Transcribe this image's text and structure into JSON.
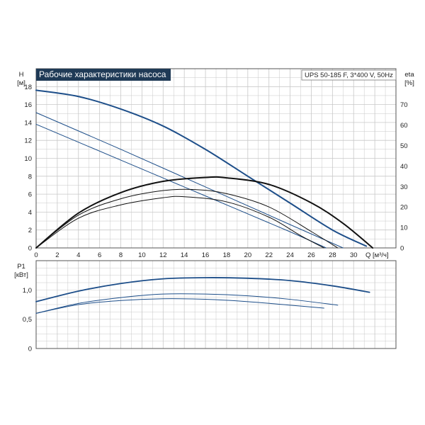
{
  "chart_data": [
    {
      "type": "line",
      "title": "Рабочие характеристики насоса",
      "model_label": "UPS 50-185 F, 3*400 V, 50Hz",
      "xlabel": "Q [м³/ч]",
      "ylabel_name": "H",
      "ylabel_unit": "[м]",
      "y2label_name": "eta",
      "y2label_unit": "[%]",
      "xlim": [
        0,
        34
      ],
      "ylim": [
        0,
        20
      ],
      "y2lim": [
        0,
        87.5
      ],
      "x_ticks": [
        "0",
        "2",
        "4",
        "6",
        "8",
        "10",
        "12",
        "14",
        "16",
        "18",
        "20",
        "22",
        "24",
        "26",
        "28",
        "30"
      ],
      "y_ticks": [
        "0",
        "2",
        "4",
        "6",
        "8",
        "10",
        "12",
        "14",
        "16",
        "18"
      ],
      "y2_ticks": [
        "0",
        "10",
        "20",
        "30",
        "40",
        "50",
        "60",
        "70"
      ],
      "grid": true,
      "colors": {
        "head": "#1d4e89",
        "efficiency": "#111111",
        "grid": "#c8c8c8",
        "title_bg": "#1f3a56"
      },
      "series": [
        {
          "kind": "head",
          "x": [
            0,
            4,
            8,
            12,
            16,
            20,
            24,
            28,
            31.2
          ],
          "y": [
            17.6,
            16.9,
            15.5,
            13.6,
            11.0,
            8.0,
            5.0,
            2.0,
            0.2
          ]
        },
        {
          "kind": "head",
          "x": [
            0,
            8,
            16,
            24,
            29.0
          ],
          "y": [
            15.1,
            11.0,
            6.8,
            2.6,
            0
          ]
        },
        {
          "kind": "head",
          "x": [
            0,
            8,
            16,
            24,
            27.4
          ],
          "y": [
            13.8,
            9.8,
            5.8,
            1.8,
            0
          ]
        },
        {
          "kind": "efficiency",
          "x": [
            0,
            4,
            8,
            12,
            16,
            18,
            22,
            26,
            29,
            31.8
          ],
          "y": [
            0,
            17,
            27,
            32.5,
            34.4,
            34.2,
            31,
            22,
            12,
            0
          ]
        },
        {
          "kind": "efficiency",
          "x": [
            0,
            4,
            8,
            12,
            15,
            18,
            22,
            26,
            28.5
          ],
          "y": [
            0,
            16,
            24,
            28,
            28.5,
            26.5,
            20,
            8,
            0
          ]
        },
        {
          "kind": "efficiency",
          "x": [
            0,
            4,
            8,
            12,
            14,
            18,
            22,
            25,
            27.2
          ],
          "y": [
            0,
            14.5,
            21,
            24.5,
            25,
            22.5,
            15,
            6,
            0
          ]
        }
      ]
    },
    {
      "type": "line",
      "ylabel_name": "P1",
      "ylabel_unit": "[кВт]",
      "xlim": [
        0,
        34
      ],
      "ylim": [
        0,
        1.5
      ],
      "y_ticks": [
        "0",
        "0,5",
        "1,0"
      ],
      "y_tick_values": [
        0,
        0.5,
        1.0
      ],
      "grid": true,
      "colors": {
        "power": "#1d4e89"
      },
      "series": [
        {
          "x": [
            0,
            4,
            8,
            12,
            16,
            20,
            24,
            28,
            31.5
          ],
          "y": [
            0.8,
            0.98,
            1.11,
            1.19,
            1.21,
            1.2,
            1.16,
            1.07,
            0.96
          ]
        },
        {
          "x": [
            0,
            4,
            8,
            12,
            16,
            20,
            24,
            28.5
          ],
          "y": [
            0.6,
            0.77,
            0.87,
            0.93,
            0.93,
            0.9,
            0.84,
            0.74
          ]
        },
        {
          "x": [
            0,
            4,
            8,
            12,
            16,
            20,
            24,
            27.2
          ],
          "y": [
            0.6,
            0.75,
            0.82,
            0.85,
            0.84,
            0.8,
            0.74,
            0.69
          ]
        }
      ]
    }
  ]
}
